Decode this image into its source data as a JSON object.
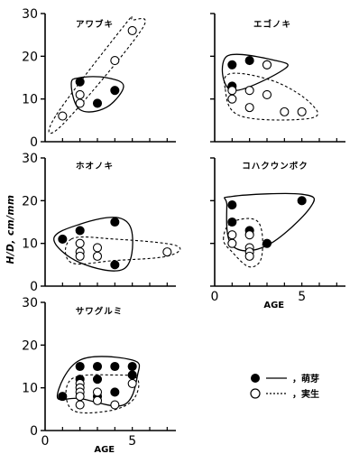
{
  "ylabel": "H/D, cm/mm",
  "legend": {
    "sprout": {
      "line": "—",
      "text": "，萌芽"
    },
    "seedling": {
      "line": "……",
      "text": "，実生"
    }
  },
  "chart_data": [
    {
      "type": "scatter",
      "title": "アワブキ",
      "xlim": [
        0,
        7.5
      ],
      "ylim": [
        0,
        30
      ],
      "yticks": [
        "0",
        "10",
        "20",
        "30"
      ],
      "xticks": [],
      "xlabel": "",
      "series": [
        {
          "kind": "sprout",
          "points": [
            [
              2,
              14
            ],
            [
              3,
              9
            ],
            [
              4,
              12
            ]
          ],
          "hull": [
            [
              1.5,
              13.5
            ],
            [
              2,
              15
            ],
            [
              3.5,
              15
            ],
            [
              4.5,
              13
            ],
            [
              3.5,
              8
            ],
            [
              2,
              7.5
            ]
          ]
        },
        {
          "kind": "seedling",
          "points": [
            [
              1,
              6
            ],
            [
              2,
              11
            ],
            [
              2,
              9
            ],
            [
              4,
              19
            ],
            [
              5,
              26
            ]
          ],
          "hull": [
            [
              0.6,
              6
            ],
            [
              1,
              4
            ],
            [
              5.5,
              26
            ],
            [
              5,
              28.5
            ],
            [
              4.5,
              27
            ]
          ]
        }
      ]
    },
    {
      "type": "scatter",
      "title": "エゴノキ",
      "xlim": [
        0,
        7.5
      ],
      "ylim": [
        0,
        30
      ],
      "yticks": [],
      "xticks": [],
      "xlabel": "",
      "series": [
        {
          "kind": "sprout",
          "points": [
            [
              1,
              18
            ],
            [
              1,
              13
            ],
            [
              2,
              19
            ],
            [
              3,
              18
            ]
          ],
          "hull": [
            [
              0.7,
              20
            ],
            [
              3.5,
              19
            ],
            [
              4,
              17
            ],
            [
              1,
              12
            ]
          ]
        },
        {
          "kind": "seedling",
          "points": [
            [
              1,
              10
            ],
            [
              1,
              12
            ],
            [
              2,
              12
            ],
            [
              2,
              8
            ],
            [
              3,
              11
            ],
            [
              4,
              7
            ],
            [
              5,
              7
            ],
            [
              3,
              18
            ]
          ],
          "hull": [
            [
              0.6,
              12.5
            ],
            [
              1,
              16
            ],
            [
              3.5,
              14
            ],
            [
              5.5,
              9
            ],
            [
              5.5,
              5.5
            ],
            [
              1.5,
              6
            ]
          ]
        }
      ]
    },
    {
      "type": "scatter",
      "title": "ホオノキ",
      "xlim": [
        0,
        7.5
      ],
      "ylim": [
        0,
        30
      ],
      "yticks": [
        "0",
        "10",
        "20",
        "30"
      ],
      "xticks": [],
      "xlabel": "",
      "series": [
        {
          "kind": "sprout",
          "points": [
            [
              1,
              11
            ],
            [
              2,
              13
            ],
            [
              4,
              15
            ],
            [
              4,
              5
            ]
          ],
          "hull": [
            [
              0.5,
              11
            ],
            [
              2,
              14.5
            ],
            [
              4.2,
              16
            ],
            [
              5,
              12
            ],
            [
              4.5,
              4
            ],
            [
              2,
              5.5
            ]
          ]
        },
        {
          "kind": "seedling",
          "points": [
            [
              2,
              10
            ],
            [
              2,
              8
            ],
            [
              2,
              7
            ],
            [
              3,
              9
            ],
            [
              3,
              7
            ],
            [
              7,
              8
            ]
          ],
          "hull": [
            [
              1.5,
              11
            ],
            [
              4,
              11
            ],
            [
              7.5,
              9.5
            ],
            [
              7,
              7
            ],
            [
              4,
              6
            ],
            [
              1.5,
              5.5
            ]
          ]
        }
      ]
    },
    {
      "type": "scatter",
      "title": "コハクウンボク",
      "xlim": [
        0,
        7.5
      ],
      "ylim": [
        0,
        30
      ],
      "yticks": [],
      "xticks": [
        "0",
        "5"
      ],
      "xlabel": "AGE",
      "series": [
        {
          "kind": "sprout",
          "points": [
            [
              1,
              19
            ],
            [
              1,
              15
            ],
            [
              2,
              13
            ],
            [
              3,
              10
            ],
            [
              5,
              20
            ]
          ],
          "hull": [
            [
              0.7,
              19
            ],
            [
              1,
              21
            ],
            [
              5,
              21.5
            ],
            [
              5.5,
              18.5
            ],
            [
              3,
              9.5
            ],
            [
              1,
              9.5
            ]
          ]
        },
        {
          "kind": "seedling",
          "points": [
            [
              1,
              12
            ],
            [
              1,
              10
            ],
            [
              2,
              12
            ],
            [
              2,
              9
            ],
            [
              2,
              8
            ],
            [
              2,
              7
            ]
          ],
          "hull": [
            [
              0.5,
              11
            ],
            [
              1,
              15
            ],
            [
              2.5,
              15
            ],
            [
              2.7,
              7
            ],
            [
              2,
              4.5
            ],
            [
              1,
              8
            ]
          ]
        }
      ]
    },
    {
      "type": "scatter",
      "title": "サワグルミ",
      "xlim": [
        0,
        7.5
      ],
      "ylim": [
        0,
        30
      ],
      "yticks": [
        "0",
        "10",
        "20",
        "30"
      ],
      "xticks": [
        "0",
        "5"
      ],
      "xlabel": "AGE",
      "series": [
        {
          "kind": "sprout",
          "points": [
            [
              1,
              8
            ],
            [
              2,
              15
            ],
            [
              2,
              12
            ],
            [
              3,
              15
            ],
            [
              3,
              12
            ],
            [
              3,
              8
            ],
            [
              4,
              15
            ],
            [
              4,
              9
            ],
            [
              5,
              15
            ],
            [
              5,
              13
            ]
          ],
          "hull": [
            [
              0.7,
              8
            ],
            [
              2,
              16.5
            ],
            [
              5,
              16.5
            ],
            [
              5.3,
              13
            ],
            [
              4.5,
              6
            ],
            [
              2,
              7.5
            ]
          ]
        },
        {
          "kind": "seedling",
          "points": [
            [
              2,
              11
            ],
            [
              2,
              10
            ],
            [
              2,
              9
            ],
            [
              2,
              8
            ],
            [
              2,
              6
            ],
            [
              3,
              9
            ],
            [
              3,
              7
            ],
            [
              4,
              6
            ],
            [
              5,
              11
            ]
          ],
          "hull": [
            [
              1.5,
              12
            ],
            [
              4,
              13
            ],
            [
              5.3,
              12
            ],
            [
              5,
              7
            ],
            [
              3.5,
              4.5
            ],
            [
              1.5,
              5
            ]
          ]
        }
      ]
    }
  ]
}
